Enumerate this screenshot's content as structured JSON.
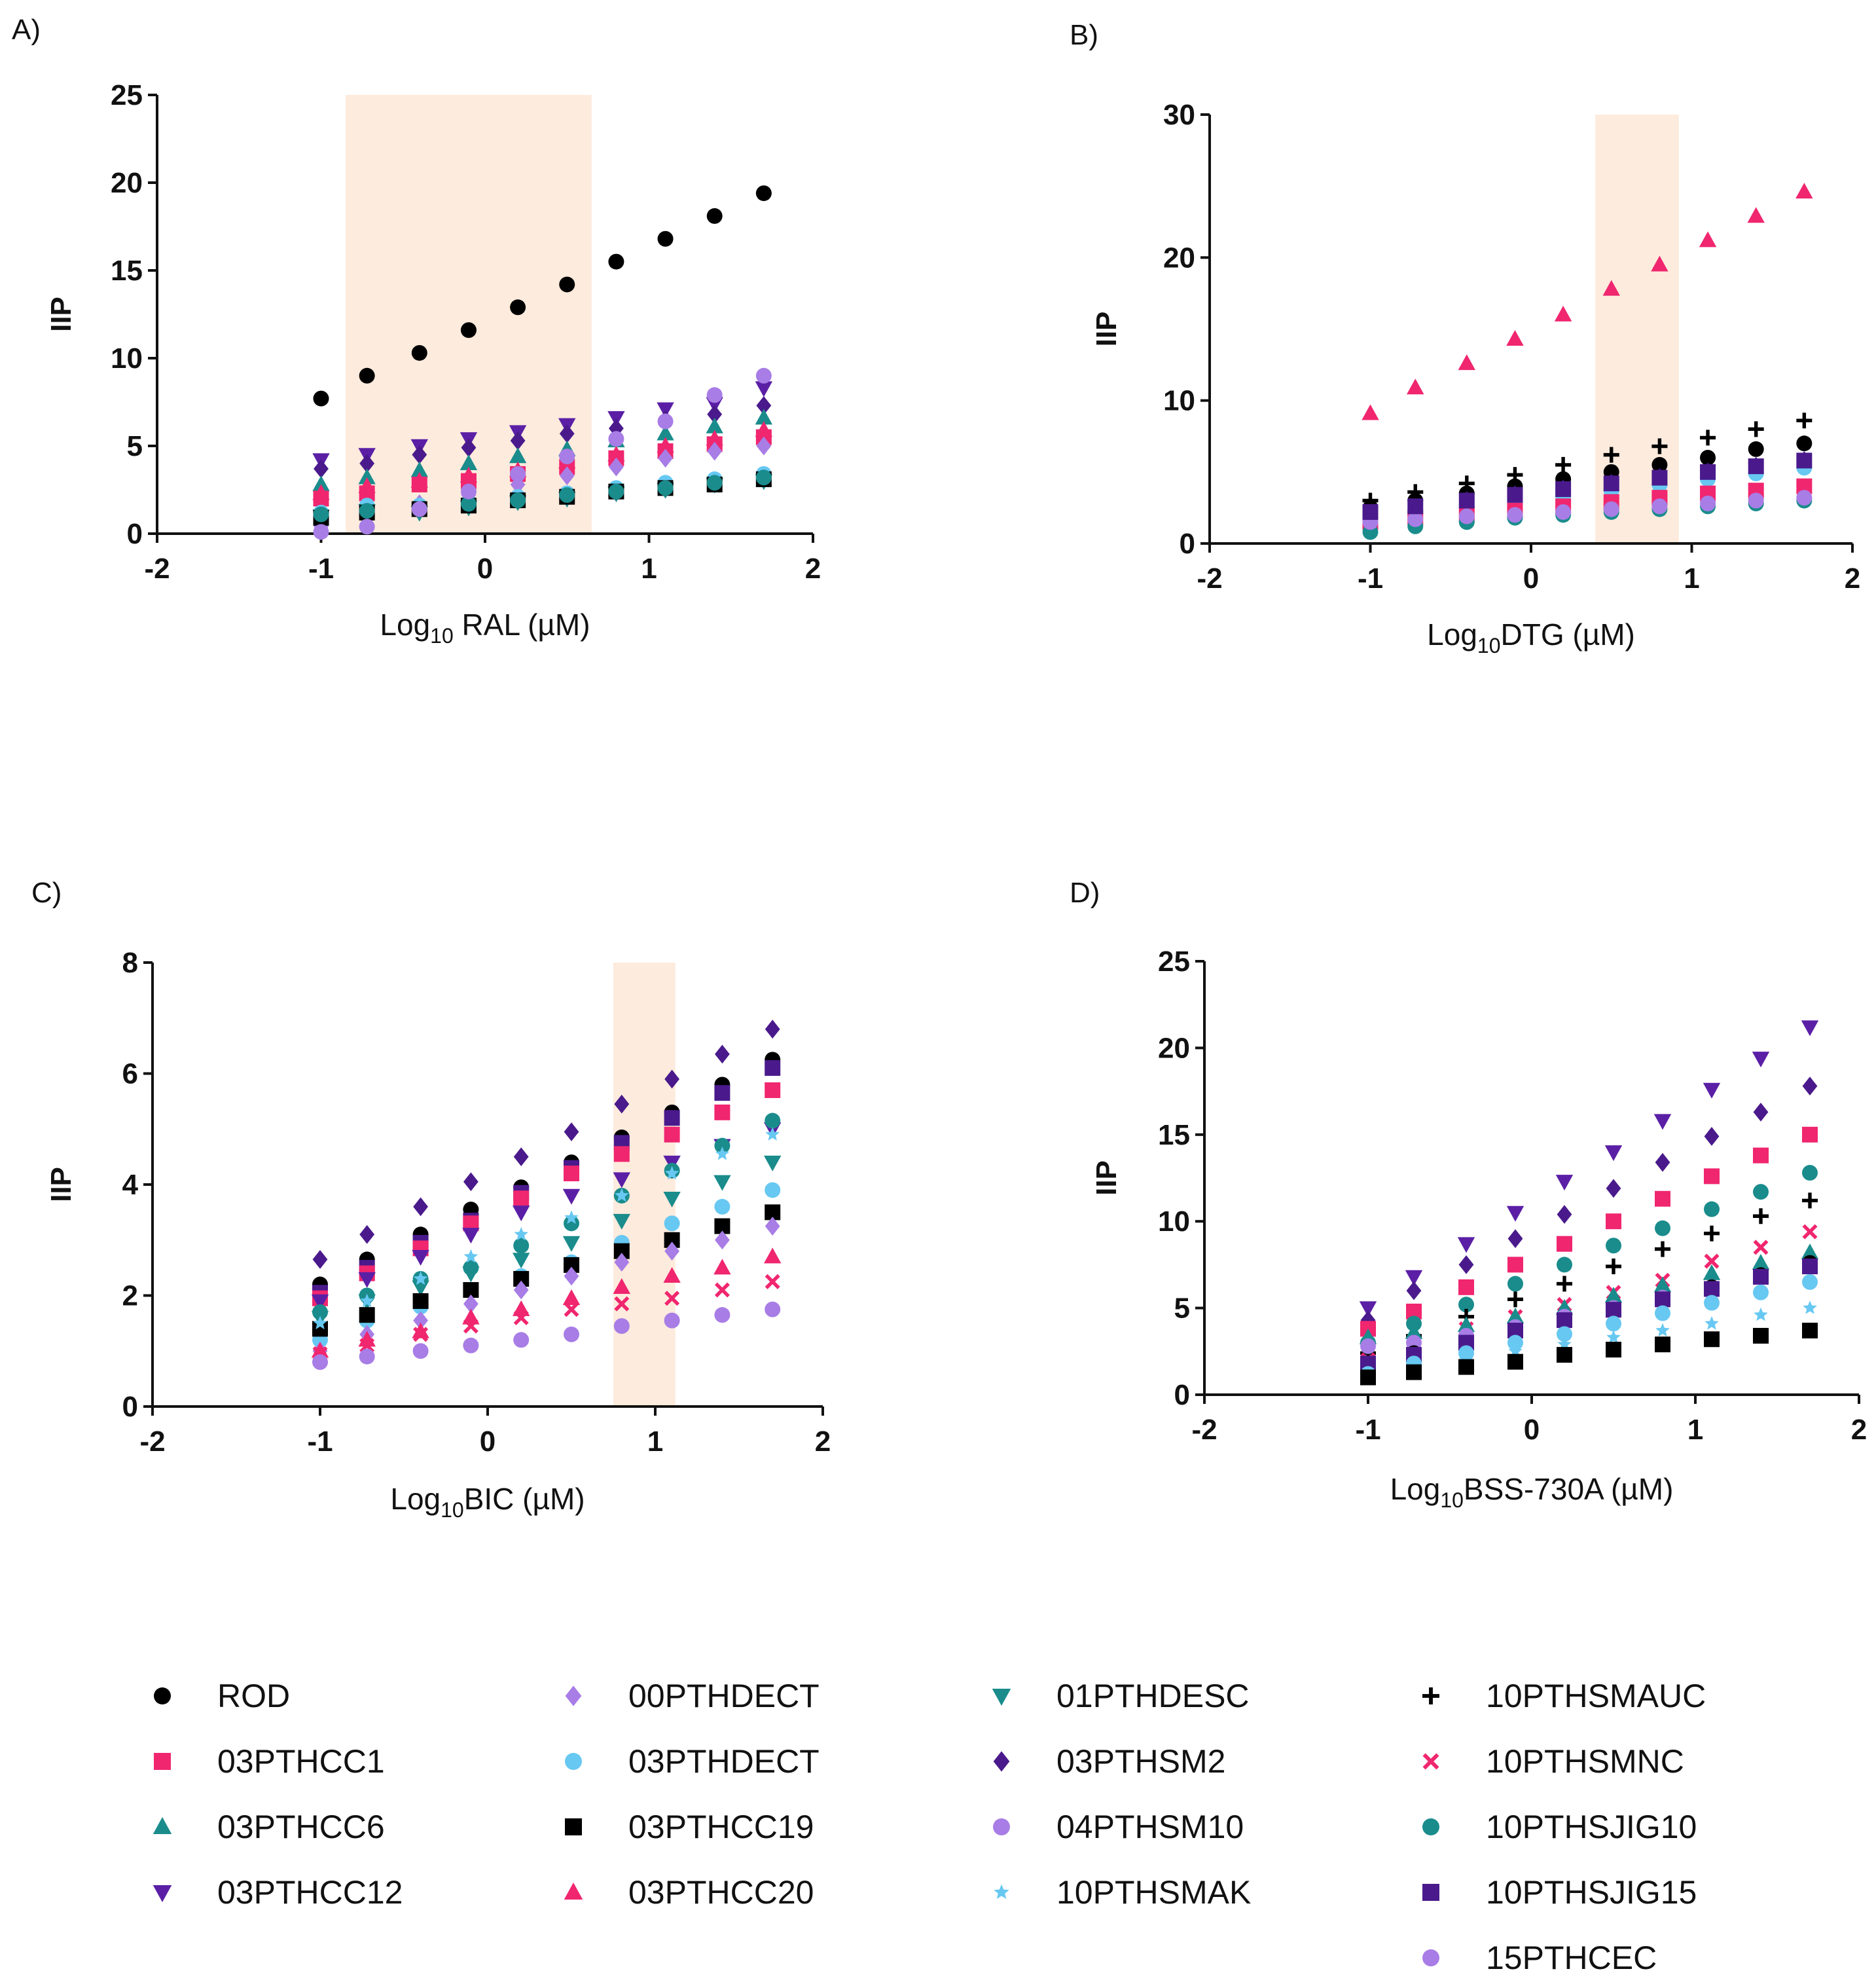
{
  "colors": {
    "shade": "#fdebdd",
    "axis": "#111111",
    "ROD": "#000000",
    "03PTHCC1": "#f0266f",
    "03PTHCC6": "#1a8c8c",
    "03PTHCC12": "#5b1fa6",
    "00PTHDECT": "#a87de6",
    "03PTHDECT": "#67c8f2",
    "03PTHCC19": "#000000",
    "03PTHCC20": "#f0266f",
    "01PTHDESC": "#1a8c8c",
    "03PTHSM2": "#4a1a8c",
    "04PTHSM10": "#a87de6",
    "10PTHSMAK": "#67c8f2",
    "10PTHSMAUC": "#000000",
    "10PTHSMNC": "#f0266f",
    "10PTHSJIG10": "#1a8c8c",
    "10PTHSJIG15": "#4a1a8c",
    "15PTHCEC": "#a87de6"
  },
  "legend": [
    {
      "name": "ROD",
      "marker": "circle"
    },
    {
      "name": "03PTHCC1",
      "marker": "square"
    },
    {
      "name": "03PTHCC6",
      "marker": "triangle-up"
    },
    {
      "name": "03PTHCC12",
      "marker": "triangle-down"
    },
    {
      "name": "00PTHDECT",
      "marker": "diamond"
    },
    {
      "name": "03PTHDECT",
      "marker": "circle"
    },
    {
      "name": "03PTHCC19",
      "marker": "square"
    },
    {
      "name": "03PTHCC20",
      "marker": "triangle-up"
    },
    {
      "name": "01PTHDESC",
      "marker": "triangle-down"
    },
    {
      "name": "03PTHSM2",
      "marker": "diamond"
    },
    {
      "name": "04PTHSM10",
      "marker": "circle"
    },
    {
      "name": "10PTHSMAK",
      "marker": "star"
    },
    {
      "name": "10PTHSMAUC",
      "marker": "plus"
    },
    {
      "name": "10PTHSMNC",
      "marker": "cross"
    },
    {
      "name": "10PTHSJIG10",
      "marker": "circle"
    },
    {
      "name": "10PTHSJIG15",
      "marker": "square"
    },
    {
      "name": "15PTHCEC",
      "marker": "circle"
    }
  ],
  "chart_data": [
    {
      "type": "scatter",
      "panel": "A)",
      "ylabel": "IIP",
      "xlabel": "Log10 RAL (µM)",
      "xlabel_main": "Log",
      "xlabel_sub": "10",
      "xlabel_rest": " RAL (µM)",
      "xlim": [
        -2,
        2
      ],
      "ylim": [
        0,
        25
      ],
      "xticks": [
        "-2",
        "-1",
        "0",
        "1",
        "2"
      ],
      "yticks": [
        "0",
        "5",
        "10",
        "15",
        "20",
        "25"
      ],
      "shaded_x_range": [
        -0.85,
        0.65
      ],
      "x": [
        -1.0,
        -0.72,
        -0.4,
        -0.1,
        0.2,
        0.5,
        0.8,
        1.1,
        1.4,
        1.7
      ],
      "series": [
        {
          "name": "ROD",
          "values": [
            7.7,
            9.0,
            10.3,
            11.6,
            12.9,
            14.2,
            15.5,
            16.8,
            18.1,
            19.4
          ]
        },
        {
          "name": "03PTHCC12",
          "values": [
            4.2,
            4.5,
            5.0,
            5.4,
            5.8,
            6.2,
            6.6,
            7.1,
            7.4,
            8.3
          ]
        },
        {
          "name": "03PTHSM2",
          "values": [
            3.7,
            4.0,
            4.5,
            4.9,
            5.3,
            5.7,
            6.0,
            6.5,
            6.8,
            7.3
          ]
        },
        {
          "name": "03PTHCC6",
          "values": [
            2.8,
            3.2,
            3.6,
            4.0,
            4.4,
            4.8,
            5.3,
            5.7,
            6.1,
            6.6
          ]
        },
        {
          "name": "03PTHCC1",
          "values": [
            2.0,
            2.3,
            2.8,
            3.0,
            3.4,
            3.8,
            4.3,
            4.7,
            5.1,
            5.5
          ]
        },
        {
          "name": "03PTHCC20",
          "values": [
            2.3,
            2.7,
            3.0,
            3.3,
            3.6,
            4.1,
            4.5,
            5.0,
            5.4,
            5.9
          ]
        },
        {
          "name": "00PTHDECT",
          "values": [
            0.4,
            1.0,
            1.7,
            2.2,
            2.8,
            3.3,
            3.8,
            4.3,
            4.7,
            5.0
          ]
        },
        {
          "name": "03PTHDECT",
          "values": [
            1.2,
            1.6,
            1.6,
            1.8,
            2.1,
            2.3,
            2.6,
            2.9,
            3.1,
            3.4
          ]
        },
        {
          "name": "01PTHDESC",
          "values": [
            1.0,
            1.3,
            1.2,
            1.5,
            1.8,
            2.0,
            2.3,
            2.5,
            2.8,
            3.0
          ]
        },
        {
          "name": "03PTHCC19",
          "values": [
            0.9,
            1.2,
            1.4,
            1.6,
            1.9,
            2.1,
            2.4,
            2.6,
            2.8,
            3.1
          ]
        },
        {
          "name": "10PTHSJIG10",
          "values": [
            1.1,
            1.3,
            1.4,
            1.7,
            1.9,
            2.2,
            2.4,
            2.6,
            2.9,
            3.2
          ]
        },
        {
          "name": "15PTHCEC",
          "values": [
            0.1,
            0.4,
            1.4,
            2.4,
            3.4,
            4.4,
            5.4,
            6.4,
            7.9,
            9.0
          ]
        }
      ]
    },
    {
      "type": "scatter",
      "panel": "B)",
      "ylabel": "IIP",
      "xlabel": "Log10DTG (µM)",
      "xlabel_main": "Log",
      "xlabel_sub": "10",
      "xlabel_rest": "DTG (µM)",
      "xlim": [
        -2,
        2
      ],
      "ylim": [
        0,
        30
      ],
      "xticks": [
        "-2",
        "-1",
        "0",
        "1",
        "2"
      ],
      "yticks": [
        "0",
        "10",
        "20",
        "30"
      ],
      "shaded_x_range": [
        0.4,
        0.92
      ],
      "x": [
        -1.0,
        -0.72,
        -0.4,
        -0.1,
        0.2,
        0.5,
        0.8,
        1.1,
        1.4,
        1.7
      ],
      "series": [
        {
          "name": "03PTHCC20",
          "values": [
            9.1,
            10.9,
            12.6,
            14.3,
            16.0,
            17.8,
            19.5,
            21.2,
            22.9,
            24.6
          ]
        },
        {
          "name": "10PTHSMAUC",
          "values": [
            3.0,
            3.6,
            4.2,
            4.8,
            5.5,
            6.2,
            6.8,
            7.4,
            8.0,
            8.6
          ]
        },
        {
          "name": "ROD",
          "values": [
            2.5,
            3.0,
            3.5,
            4.0,
            4.5,
            5.0,
            5.5,
            6.0,
            6.6,
            7.0
          ]
        },
        {
          "name": "03PTHSM2",
          "values": [
            2.0,
            2.5,
            3.0,
            3.4,
            3.8,
            4.2,
            4.6,
            5.0,
            5.4,
            5.8
          ]
        },
        {
          "name": "03PTHDECT",
          "values": [
            1.8,
            2.2,
            2.6,
            2.9,
            3.3,
            3.7,
            4.1,
            4.5,
            4.9,
            5.3
          ]
        },
        {
          "name": "03PTHCC1",
          "values": [
            1.5,
            1.8,
            2.0,
            2.3,
            2.6,
            2.9,
            3.2,
            3.5,
            3.7,
            4.0
          ]
        },
        {
          "name": "10PTHSJIG10",
          "values": [
            0.8,
            1.2,
            1.5,
            1.8,
            2.0,
            2.2,
            2.4,
            2.6,
            2.8,
            3.0
          ]
        },
        {
          "name": "15PTHCEC",
          "values": [
            1.5,
            1.7,
            1.9,
            2.0,
            2.2,
            2.4,
            2.6,
            2.8,
            3.0,
            3.2
          ]
        },
        {
          "name": "10PTHSJIG15",
          "values": [
            2.2,
            2.6,
            3.0,
            3.4,
            3.8,
            4.2,
            4.6,
            5.0,
            5.4,
            5.8
          ]
        }
      ]
    },
    {
      "type": "scatter",
      "panel": "C)",
      "ylabel": "IIP",
      "xlabel": "Log10BIC (µM)",
      "xlabel_main": "Log",
      "xlabel_sub": "10",
      "xlabel_rest": "BIC (µM)",
      "xlim": [
        -2,
        2
      ],
      "ylim": [
        0,
        8
      ],
      "xticks": [
        "-2",
        "-1",
        "0",
        "1",
        "2"
      ],
      "yticks": [
        "0",
        "2",
        "4",
        "6",
        "8"
      ],
      "shaded_x_range": [
        0.75,
        1.12
      ],
      "x": [
        -1.0,
        -0.72,
        -0.4,
        -0.1,
        0.2,
        0.5,
        0.8,
        1.1,
        1.4,
        1.7
      ],
      "series": [
        {
          "name": "03PTHSM2",
          "values": [
            2.65,
            3.1,
            3.6,
            4.05,
            4.5,
            4.95,
            5.45,
            5.9,
            6.35,
            6.8
          ]
        },
        {
          "name": "ROD",
          "values": [
            2.2,
            2.65,
            3.1,
            3.55,
            3.95,
            4.4,
            4.85,
            5.3,
            5.8,
            6.25
          ]
        },
        {
          "name": "10PTHSJIG15",
          "values": [
            2.05,
            2.5,
            2.95,
            3.35,
            3.85,
            4.3,
            4.75,
            5.2,
            5.65,
            6.1
          ]
        },
        {
          "name": "03PTHCC1",
          "values": [
            1.95,
            2.4,
            2.85,
            3.3,
            3.75,
            4.2,
            4.55,
            4.9,
            5.3,
            5.7
          ]
        },
        {
          "name": "03PTHCC12",
          "values": [
            1.9,
            2.3,
            2.7,
            3.1,
            3.5,
            3.8,
            4.1,
            4.4,
            4.7,
            5.0
          ]
        },
        {
          "name": "10PTHSJIG10",
          "values": [
            1.7,
            2.0,
            2.3,
            2.5,
            2.9,
            3.3,
            3.8,
            4.25,
            4.7,
            5.15
          ]
        },
        {
          "name": "01PTHDESC",
          "values": [
            1.6,
            1.9,
            2.15,
            2.4,
            2.65,
            2.95,
            3.35,
            3.75,
            4.05,
            4.4
          ]
        },
        {
          "name": "03PTHDECT",
          "values": [
            1.2,
            1.55,
            1.8,
            2.1,
            2.35,
            2.6,
            2.95,
            3.3,
            3.6,
            3.9
          ]
        },
        {
          "name": "03PTHCC19",
          "values": [
            1.4,
            1.65,
            1.9,
            2.1,
            2.3,
            2.55,
            2.8,
            3.0,
            3.25,
            3.5
          ]
        },
        {
          "name": "00PTHDECT",
          "values": [
            1.0,
            1.3,
            1.55,
            1.85,
            2.1,
            2.35,
            2.6,
            2.8,
            3.0,
            3.25
          ]
        },
        {
          "name": "03PTHCC20",
          "values": [
            1.0,
            1.2,
            1.35,
            1.6,
            1.75,
            1.95,
            2.15,
            2.35,
            2.5,
            2.7
          ]
        },
        {
          "name": "10PTHSMNC",
          "values": [
            0.95,
            1.1,
            1.3,
            1.45,
            1.6,
            1.75,
            1.85,
            1.95,
            2.1,
            2.25
          ]
        },
        {
          "name": "15PTHCEC",
          "values": [
            0.8,
            0.9,
            1.0,
            1.1,
            1.2,
            1.3,
            1.45,
            1.55,
            1.65,
            1.75
          ]
        },
        {
          "name": "10PTHSMAK",
          "values": [
            1.5,
            1.9,
            2.3,
            2.7,
            3.1,
            3.4,
            3.8,
            4.2,
            4.55,
            4.9
          ]
        }
      ]
    },
    {
      "type": "scatter",
      "panel": "D)",
      "ylabel": "IIP",
      "xlabel": "Log10BSS-730A (µM)",
      "xlabel_main": "Log",
      "xlabel_sub": "10",
      "xlabel_rest": "BSS-730A (µM)",
      "xlim": [
        -2,
        2
      ],
      "ylim": [
        0,
        25
      ],
      "xticks": [
        "-2",
        "-1",
        "0",
        "1",
        "2"
      ],
      "yticks": [
        "0",
        "5",
        "10",
        "15",
        "20",
        "25"
      ],
      "shaded_x_range": null,
      "x": [
        -1.0,
        -0.72,
        -0.4,
        -0.1,
        0.2,
        0.5,
        0.8,
        1.1,
        1.4,
        1.7
      ],
      "series": [
        {
          "name": "03PTHCC12",
          "values": [
            5.0,
            6.8,
            8.7,
            10.5,
            12.3,
            14.0,
            15.8,
            17.6,
            19.4,
            21.2
          ]
        },
        {
          "name": "03PTHSM2",
          "values": [
            4.3,
            6.0,
            7.5,
            9.0,
            10.4,
            11.9,
            13.4,
            14.9,
            16.3,
            17.8
          ]
        },
        {
          "name": "03PTHCC1",
          "values": [
            3.8,
            4.8,
            6.2,
            7.5,
            8.7,
            10.0,
            11.3,
            12.6,
            13.8,
            15.0
          ]
        },
        {
          "name": "10PTHSJIG10",
          "values": [
            3.0,
            4.1,
            5.2,
            6.4,
            7.5,
            8.6,
            9.6,
            10.7,
            11.7,
            12.8
          ]
        },
        {
          "name": "10PTHSMAUC",
          "values": [
            2.4,
            3.4,
            4.5,
            5.5,
            6.4,
            7.4,
            8.4,
            9.3,
            10.3,
            11.2
          ]
        },
        {
          "name": "10PTHSMNC",
          "values": [
            2.0,
            3.0,
            3.8,
            4.5,
            5.2,
            5.9,
            6.6,
            7.7,
            8.5,
            9.4
          ]
        },
        {
          "name": "03PTHCC6",
          "values": [
            3.3,
            3.6,
            4.0,
            4.5,
            5.0,
            5.7,
            6.3,
            7.0,
            7.6,
            8.2
          ]
        },
        {
          "name": "04PTHSM10",
          "values": [
            2.8,
            3.0,
            3.4,
            3.9,
            4.5,
            5.0,
            5.6,
            6.2,
            6.8,
            7.4
          ]
        },
        {
          "name": "ROD",
          "values": [
            1.6,
            2.4,
            3.0,
            3.6,
            4.2,
            4.9,
            5.5,
            6.2,
            6.9,
            7.6
          ]
        },
        {
          "name": "10PTHSJIG15",
          "values": [
            1.8,
            2.3,
            3.0,
            3.7,
            4.3,
            4.9,
            5.5,
            6.1,
            6.8,
            7.4
          ]
        },
        {
          "name": "03PTHDECT",
          "values": [
            1.2,
            1.8,
            2.4,
            3.0,
            3.5,
            4.1,
            4.7,
            5.3,
            5.9,
            6.5
          ]
        },
        {
          "name": "10PTHSMAK",
          "values": [
            1.0,
            1.5,
            2.0,
            2.5,
            2.9,
            3.3,
            3.7,
            4.1,
            4.6,
            5.0
          ]
        },
        {
          "name": "03PTHCC19",
          "values": [
            1.0,
            1.3,
            1.6,
            1.9,
            2.3,
            2.6,
            2.9,
            3.2,
            3.4,
            3.7
          ]
        }
      ]
    }
  ]
}
